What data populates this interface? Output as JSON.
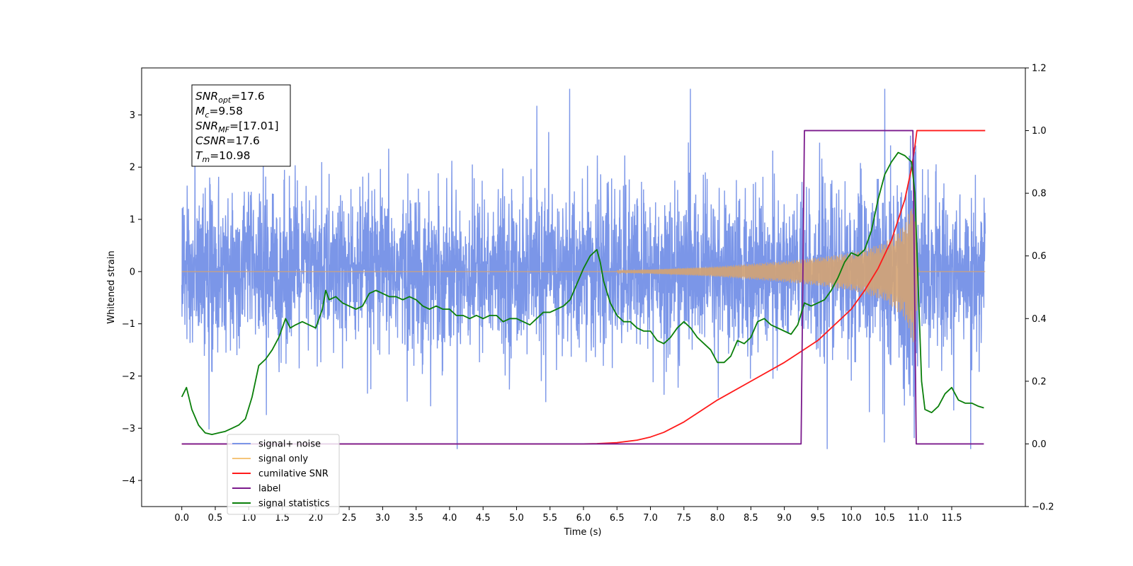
{
  "chart_data": {
    "type": "line",
    "xlabel": "Time (s)",
    "ylabel_left": "Whitened strain",
    "xlim": [
      -0.6,
      12.6
    ],
    "ylim_left": [
      -4.5,
      3.9
    ],
    "ylim_right": [
      -0.2,
      1.2
    ],
    "x_ticks": [
      "0.0",
      "0.5",
      "1.0",
      "1.5",
      "2.0",
      "2.5",
      "3.0",
      "3.5",
      "4.0",
      "4.5",
      "5.0",
      "5.5",
      "6.0",
      "6.5",
      "7.0",
      "7.5",
      "8.0",
      "8.5",
      "9.0",
      "9.5",
      "10.0",
      "10.5",
      "11.0",
      "11.5"
    ],
    "y_ticks_left": [
      "−4",
      "−3",
      "−2",
      "−1",
      "0",
      "1",
      "2",
      "3"
    ],
    "y_ticks_right": [
      "−0.2",
      "0.0",
      "0.2",
      "0.4",
      "0.6",
      "0.8",
      "1.0",
      "1.2"
    ],
    "grid": false,
    "legend_position": "lower-left",
    "annotation": {
      "lines": [
        {
          "sym": "SNR",
          "sub": "opt",
          "value": "=17.6"
        },
        {
          "sym": "M",
          "sub": "c",
          "value": "=9.58"
        },
        {
          "sym": "SNR",
          "sub": "MF",
          "value": "=[17.01]"
        },
        {
          "sym": "CSNR",
          "sub": "",
          "value": "=17.6"
        },
        {
          "sym": "T",
          "sub": "m",
          "value": "=10.98"
        }
      ]
    },
    "series": [
      {
        "name": "signal+ noise",
        "color": "#7b96e8",
        "axis": "left",
        "noise_sigma": 0.75,
        "x_range": [
          0.0,
          12.0
        ]
      },
      {
        "name": "signal only",
        "color": "#f5c57a",
        "axis": "left",
        "envelope": {
          "t": [
            6.5,
            7.0,
            8.0,
            9.0,
            9.5,
            10.0,
            10.5,
            10.8,
            10.95,
            11.0
          ],
          "amp": [
            0.02,
            0.04,
            0.1,
            0.2,
            0.27,
            0.36,
            0.55,
            0.9,
            1.5,
            0.05
          ]
        }
      },
      {
        "name": "cumilative SNR",
        "color": "#ff1a1a",
        "axis": "right",
        "x": [
          0.0,
          6.0,
          6.2,
          6.5,
          6.8,
          7.0,
          7.2,
          7.5,
          8.0,
          8.5,
          9.0,
          9.5,
          10.0,
          10.2,
          10.4,
          10.6,
          10.8,
          10.9,
          10.95,
          10.98,
          11.0,
          12.0
        ],
        "y": [
          0.0,
          0.0,
          0.001,
          0.004,
          0.012,
          0.022,
          0.037,
          0.07,
          0.14,
          0.2,
          0.26,
          0.33,
          0.43,
          0.49,
          0.56,
          0.65,
          0.78,
          0.88,
          0.95,
          1.0,
          1.0,
          1.0
        ]
      },
      {
        "name": "label",
        "color": "#7b1a8c",
        "axis": "right",
        "x": [
          0.0,
          9.25,
          9.3,
          10.92,
          10.97,
          11.98
        ],
        "y": [
          0.0,
          0.0,
          1.0,
          1.0,
          0.0,
          0.0
        ]
      },
      {
        "name": "signal statistics",
        "color": "#0a7f0a",
        "axis": "right",
        "x": [
          0.0,
          0.07,
          0.15,
          0.25,
          0.35,
          0.45,
          0.55,
          0.65,
          0.75,
          0.85,
          0.95,
          1.05,
          1.15,
          1.25,
          1.35,
          1.45,
          1.55,
          1.62,
          1.7,
          1.8,
          1.9,
          2.0,
          2.1,
          2.15,
          2.2,
          2.3,
          2.4,
          2.5,
          2.6,
          2.7,
          2.8,
          2.9,
          3.0,
          3.1,
          3.2,
          3.3,
          3.4,
          3.5,
          3.6,
          3.7,
          3.8,
          3.9,
          4.0,
          4.1,
          4.2,
          4.3,
          4.4,
          4.5,
          4.6,
          4.7,
          4.8,
          4.9,
          5.0,
          5.1,
          5.2,
          5.3,
          5.4,
          5.5,
          5.6,
          5.7,
          5.8,
          5.9,
          6.0,
          6.1,
          6.2,
          6.25,
          6.3,
          6.4,
          6.5,
          6.6,
          6.7,
          6.8,
          6.9,
          7.0,
          7.1,
          7.2,
          7.3,
          7.4,
          7.5,
          7.6,
          7.7,
          7.8,
          7.9,
          8.0,
          8.1,
          8.2,
          8.3,
          8.4,
          8.5,
          8.6,
          8.7,
          8.8,
          8.9,
          9.0,
          9.1,
          9.2,
          9.3,
          9.4,
          9.5,
          9.6,
          9.7,
          9.8,
          9.9,
          10.0,
          10.1,
          10.2,
          10.3,
          10.4,
          10.5,
          10.6,
          10.7,
          10.8,
          10.9,
          10.95,
          11.0,
          11.05,
          11.1,
          11.2,
          11.3,
          11.4,
          11.5,
          11.6,
          11.7,
          11.8,
          11.9,
          11.98
        ],
        "y": [
          0.15,
          0.18,
          0.11,
          0.06,
          0.035,
          0.03,
          0.035,
          0.04,
          0.05,
          0.06,
          0.08,
          0.15,
          0.25,
          0.27,
          0.3,
          0.34,
          0.4,
          0.37,
          0.38,
          0.39,
          0.38,
          0.37,
          0.43,
          0.49,
          0.46,
          0.47,
          0.45,
          0.44,
          0.43,
          0.44,
          0.48,
          0.49,
          0.48,
          0.47,
          0.47,
          0.46,
          0.47,
          0.46,
          0.44,
          0.43,
          0.44,
          0.43,
          0.43,
          0.41,
          0.41,
          0.4,
          0.41,
          0.4,
          0.41,
          0.41,
          0.39,
          0.4,
          0.4,
          0.39,
          0.38,
          0.4,
          0.42,
          0.42,
          0.43,
          0.44,
          0.46,
          0.51,
          0.56,
          0.6,
          0.62,
          0.58,
          0.52,
          0.45,
          0.41,
          0.39,
          0.39,
          0.37,
          0.36,
          0.36,
          0.33,
          0.32,
          0.34,
          0.37,
          0.39,
          0.37,
          0.34,
          0.32,
          0.3,
          0.26,
          0.26,
          0.28,
          0.33,
          0.32,
          0.34,
          0.39,
          0.4,
          0.38,
          0.37,
          0.36,
          0.35,
          0.38,
          0.45,
          0.44,
          0.45,
          0.46,
          0.49,
          0.53,
          0.58,
          0.61,
          0.6,
          0.62,
          0.68,
          0.78,
          0.86,
          0.9,
          0.93,
          0.92,
          0.9,
          0.8,
          0.5,
          0.2,
          0.11,
          0.1,
          0.12,
          0.16,
          0.18,
          0.14,
          0.13,
          0.13,
          0.12,
          0.115
        ]
      }
    ]
  }
}
